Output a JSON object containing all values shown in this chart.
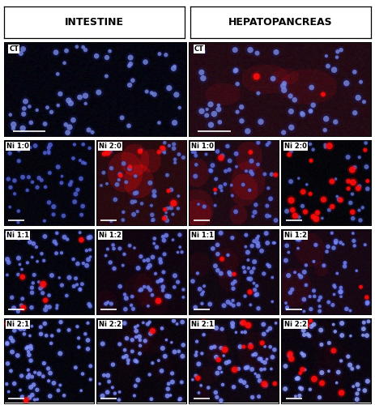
{
  "title_left": "INTESTINE",
  "title_right": "HEPATOPANCREAS",
  "background": "#ffffff",
  "panel_border_color": "#000000",
  "header_border_color": "#000000",
  "label_box_bg": "#ffffff",
  "label_box_text": "#000000",
  "label_fontsize": 6.0,
  "header_fontsize": 9,
  "ct_panels": [
    {
      "label": "CT",
      "bg": "#000005",
      "bg_r": 0,
      "bg_g": 0,
      "bg_b": 10,
      "nuclei_color": "#4455bb",
      "n_nuclei": 60,
      "red_density": 0.0,
      "has_texture": false
    },
    {
      "label": "CT",
      "bg": "#180005",
      "bg_r": 30,
      "bg_g": 5,
      "bg_b": 15,
      "nuclei_color": "#4455bb",
      "n_nuclei": 55,
      "red_density": 0.05,
      "has_texture": true
    }
  ],
  "panels": [
    {
      "row": 0,
      "col": 0,
      "label": "Ni 1:0",
      "bg_r": 0,
      "bg_g": 0,
      "bg_b": 8,
      "nuclei_color": "#2233aa",
      "n_nuclei": 50,
      "red_density": 0.0,
      "texture_r": 0
    },
    {
      "row": 0,
      "col": 1,
      "label": "Ni 2:0",
      "bg_r": 35,
      "bg_g": 5,
      "bg_b": 10,
      "nuclei_color": "#3344aa",
      "n_nuclei": 55,
      "red_density": 0.25,
      "texture_r": 40
    },
    {
      "row": 0,
      "col": 2,
      "label": "Ni 1:0",
      "bg_r": 25,
      "bg_g": 5,
      "bg_b": 15,
      "nuclei_color": "#3344bb",
      "n_nuclei": 50,
      "red_density": 0.08,
      "texture_r": 30
    },
    {
      "row": 0,
      "col": 3,
      "label": "Ni 2:0",
      "bg_r": 0,
      "bg_g": 0,
      "bg_b": 5,
      "nuclei_color": "#3344aa",
      "n_nuclei": 30,
      "red_density": 0.8,
      "texture_r": 0
    },
    {
      "row": 1,
      "col": 0,
      "label": "Ni 1:1",
      "bg_r": 0,
      "bg_g": 0,
      "bg_b": 8,
      "nuclei_color": "#4455cc",
      "n_nuclei": 70,
      "red_density": 0.08,
      "texture_r": 0
    },
    {
      "row": 1,
      "col": 1,
      "label": "Ni 1:2",
      "bg_r": 10,
      "bg_g": 0,
      "bg_b": 10,
      "nuclei_color": "#4455cc",
      "n_nuclei": 65,
      "red_density": 0.03,
      "texture_r": 10
    },
    {
      "row": 1,
      "col": 2,
      "label": "Ni 1:1",
      "bg_r": 12,
      "bg_g": 2,
      "bg_b": 12,
      "nuclei_color": "#4455cc",
      "n_nuclei": 65,
      "red_density": 0.06,
      "texture_r": 12
    },
    {
      "row": 1,
      "col": 3,
      "label": "Ni 1:2",
      "bg_r": 18,
      "bg_g": 3,
      "bg_b": 15,
      "nuclei_color": "#4455cc",
      "n_nuclei": 60,
      "red_density": 0.04,
      "texture_r": 18
    },
    {
      "row": 2,
      "col": 0,
      "label": "Ni 2:1",
      "bg_r": 0,
      "bg_g": 0,
      "bg_b": 8,
      "nuclei_color": "#5566dd",
      "n_nuclei": 75,
      "red_density": 0.03,
      "texture_r": 0
    },
    {
      "row": 2,
      "col": 1,
      "label": "Ni 2:2",
      "bg_r": 5,
      "bg_g": 0,
      "bg_b": 8,
      "nuclei_color": "#5566dd",
      "n_nuclei": 70,
      "red_density": 0.01,
      "texture_r": 5
    },
    {
      "row": 2,
      "col": 2,
      "label": "Ni 2:1",
      "bg_r": 10,
      "bg_g": 2,
      "bg_b": 12,
      "nuclei_color": "#5566dd",
      "n_nuclei": 70,
      "red_density": 0.18,
      "texture_r": 10
    },
    {
      "row": 2,
      "col": 3,
      "label": "Ni 2:2",
      "bg_r": 5,
      "bg_g": 0,
      "bg_b": 10,
      "nuclei_color": "#6677ee",
      "n_nuclei": 50,
      "red_density": 0.2,
      "texture_r": 5
    }
  ]
}
